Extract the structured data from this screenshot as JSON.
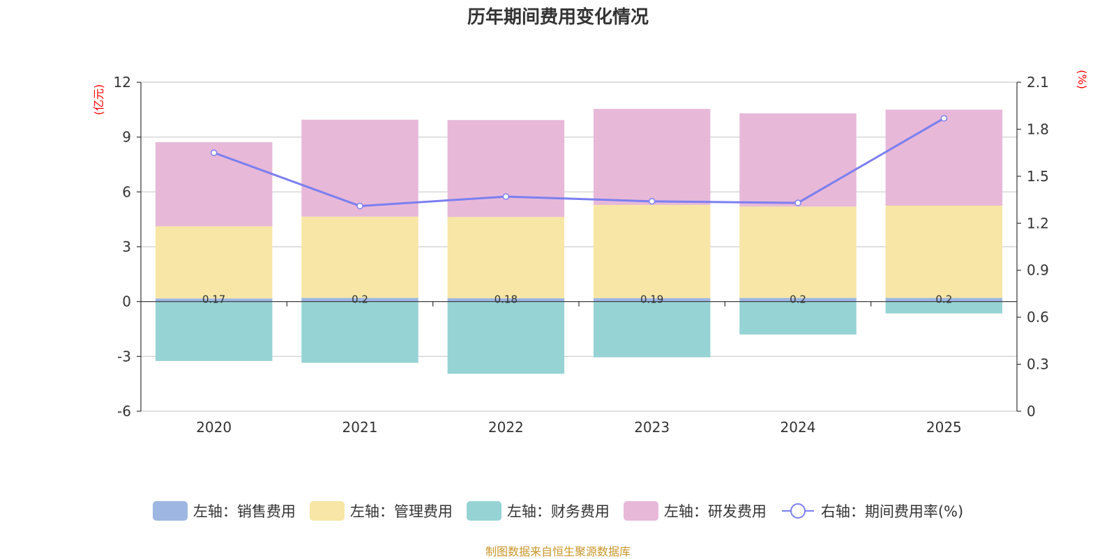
{
  "chart_data": {
    "type": "bar",
    "stacked": true,
    "title": "历年期间费用变化情况",
    "categories": [
      "2020",
      "2021",
      "2022",
      "2023",
      "2024",
      "2025"
    ],
    "left_axis": {
      "unit_label": "(亿元)",
      "ylim": [
        -6,
        12
      ],
      "ticks": [
        -6,
        -3,
        0,
        3,
        6,
        9,
        12
      ]
    },
    "right_axis": {
      "unit_label": "(%)",
      "ylim": [
        0,
        2.1
      ],
      "ticks": [
        "0",
        "0.3",
        "0.6",
        "0.9",
        "1.2",
        "1.5",
        "1.8",
        "2.1"
      ]
    },
    "series": [
      {
        "name": "左轴：销售费用",
        "axis": "left",
        "kind": "bar",
        "color": "#9db6e2",
        "values": [
          0.17,
          0.2,
          0.18,
          0.19,
          0.2,
          0.2
        ]
      },
      {
        "name": "左轴：管理费用",
        "axis": "left",
        "kind": "bar",
        "color": "#f7e6a6",
        "values": [
          3.95,
          4.45,
          4.45,
          5.1,
          5.0,
          5.05
        ]
      },
      {
        "name": "左轴：财务费用",
        "axis": "left",
        "kind": "bar",
        "color": "#96d3d4",
        "values": [
          -3.25,
          -3.35,
          -3.95,
          -3.05,
          -1.8,
          -0.65
        ]
      },
      {
        "name": "左轴：研发费用",
        "axis": "left",
        "kind": "bar",
        "color": "#e7b8d8",
        "values": [
          4.6,
          5.3,
          5.3,
          5.25,
          5.1,
          5.25
        ]
      },
      {
        "name": "右轴：期间费用率(%)",
        "axis": "right",
        "kind": "line",
        "color": "#7b7ff0",
        "values": [
          1.65,
          1.31,
          1.37,
          1.34,
          1.33,
          1.87
        ]
      }
    ],
    "bar_value_labels_clipped": [
      "0.17",
      "0.2",
      "0.18",
      "0.19",
      "0.2",
      "0.2"
    ]
  },
  "legend": {
    "items": [
      {
        "label": "左轴：销售费用",
        "color": "#9db6e2",
        "kind": "bar"
      },
      {
        "label": "左轴：管理费用",
        "color": "#f7e6a6",
        "kind": "bar"
      },
      {
        "label": "左轴：财务费用",
        "color": "#96d3d4",
        "kind": "bar"
      },
      {
        "label": "左轴：研发费用",
        "color": "#e7b8d8",
        "kind": "bar"
      },
      {
        "label": "右轴：期间费用率(%)",
        "color": "#7b7ff0",
        "kind": "line"
      }
    ]
  },
  "source_note": "制图数据来自恒生聚源数据库"
}
